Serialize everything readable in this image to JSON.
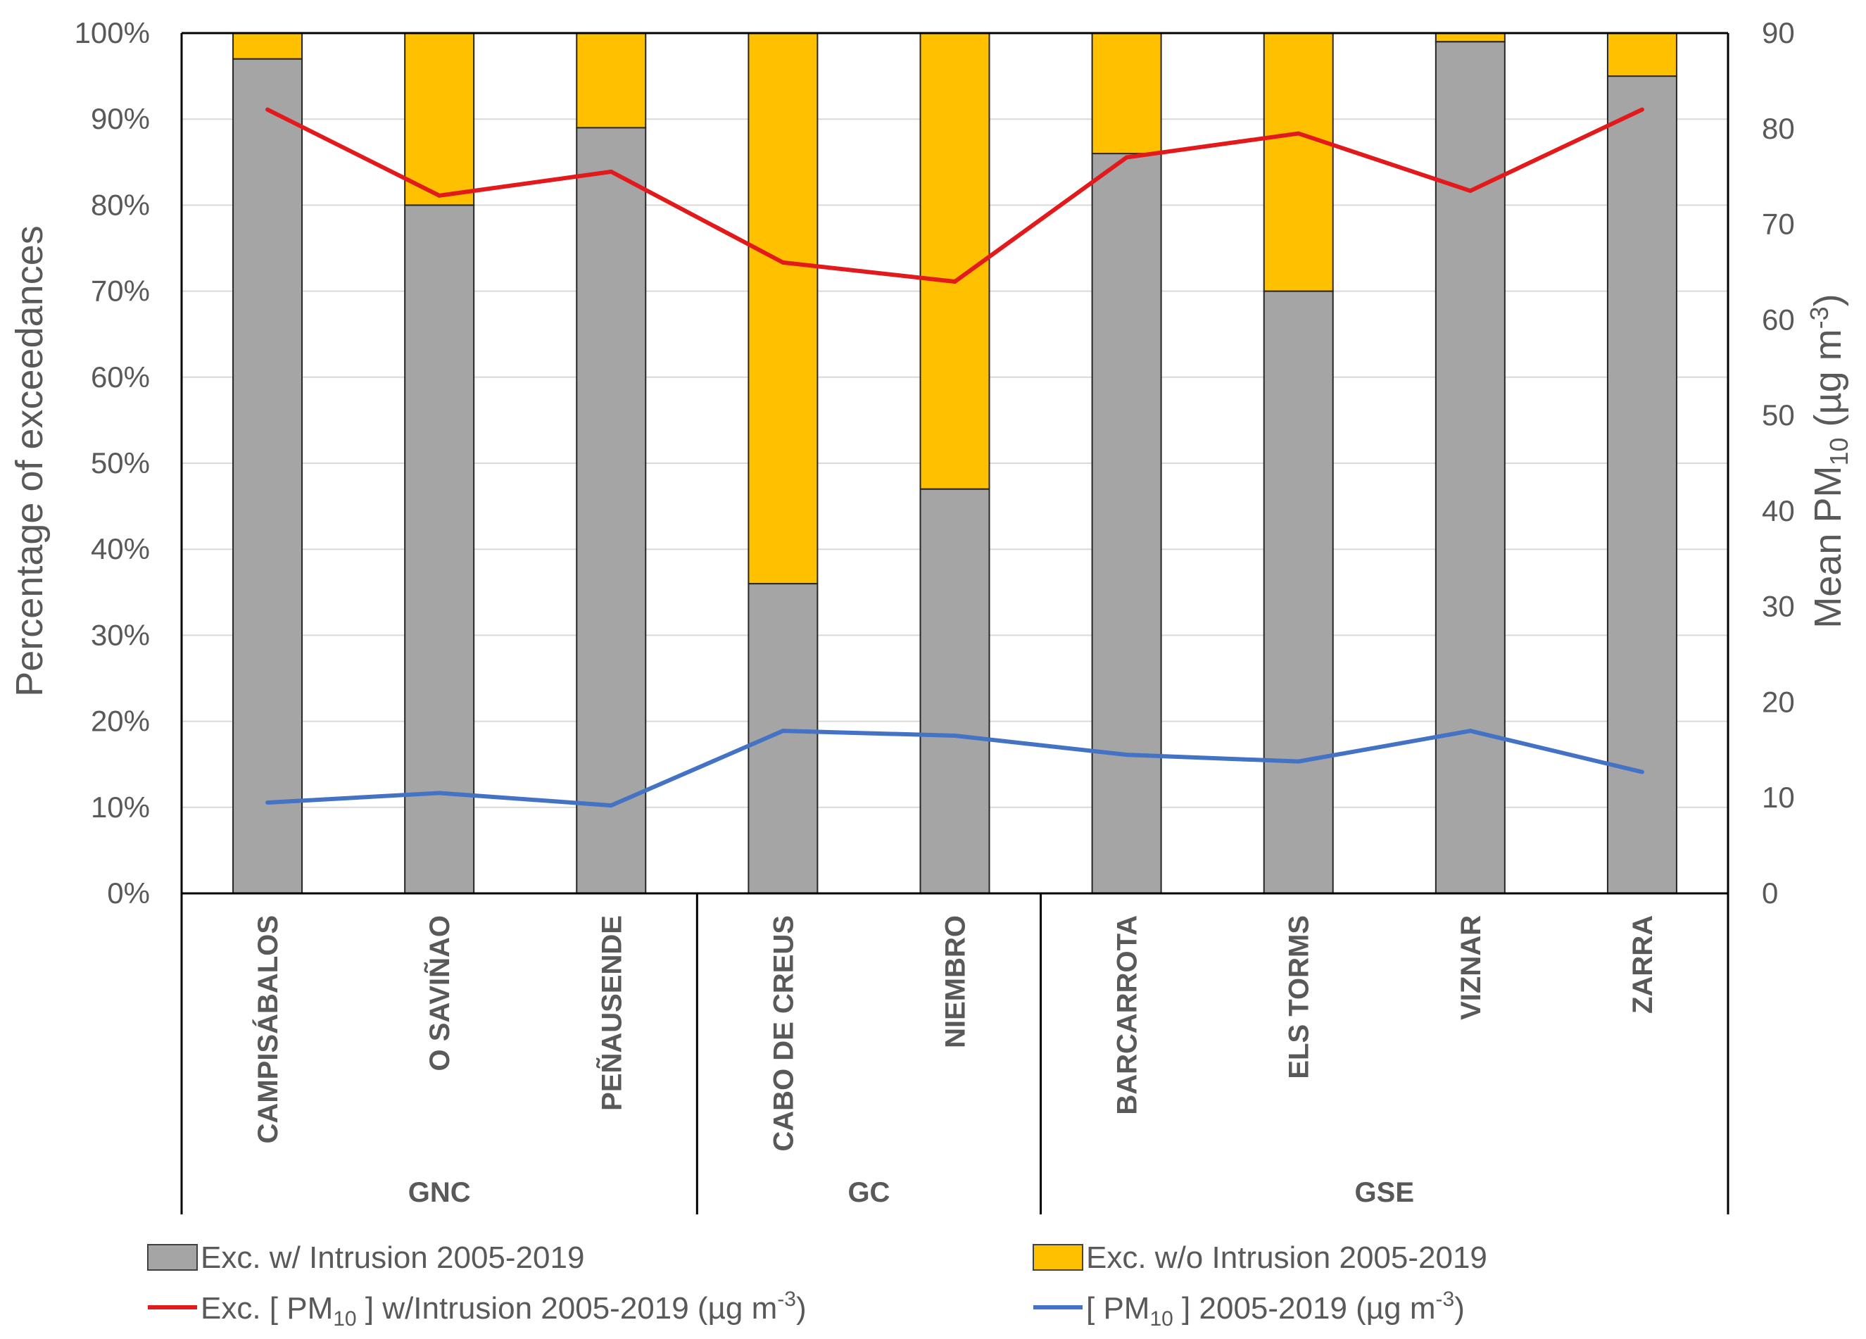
{
  "chart_data": {
    "type": "bar",
    "stacked": true,
    "categories": [
      "CAMPISÁBALOS",
      "O SAVIÑAO",
      "PEÑAUSENDE",
      "CABO DE CREUS",
      "NIEMBRO",
      "BARCARROTA",
      "ELS TORMS",
      "VIZNAR",
      "ZARRA"
    ],
    "groups": [
      {
        "label": "GNC",
        "categories": [
          "CAMPISÁBALOS",
          "O SAVIÑAO",
          "PEÑAUSENDE"
        ]
      },
      {
        "label": "GC",
        "categories": [
          "CABO DE CREUS",
          "NIEMBRO"
        ]
      },
      {
        "label": "GSE",
        "categories": [
          "BARCARROTA",
          "ELS TORMS",
          "VIZNAR",
          "ZARRA"
        ]
      }
    ],
    "series": [
      {
        "name": "Exc. w/ Intrusion 2005-2019",
        "kind": "bar",
        "axis": "left",
        "color": "#a5a5a5",
        "values": [
          97,
          80,
          89,
          36,
          47,
          86,
          70,
          99,
          95
        ]
      },
      {
        "name": "Exc. w/o Intrusion 2005-2019",
        "kind": "bar",
        "axis": "left",
        "color": "#ffc000",
        "values": [
          3,
          20,
          11,
          64,
          53,
          14,
          30,
          1,
          5
        ]
      },
      {
        "name": "Exc. [ PM10 ] w/Intrusion 2005-2019 (µg m-3)",
        "kind": "line",
        "axis": "right",
        "color": "#e31a1c",
        "values": [
          82,
          73,
          75.5,
          66,
          64,
          77,
          79.5,
          73.5,
          82
        ]
      },
      {
        "name": "[ PM10 ] 2005-2019 (µg m-3)",
        "kind": "line",
        "axis": "right",
        "color": "#4472c4",
        "values": [
          9.5,
          10.5,
          9.2,
          17,
          16.5,
          14.5,
          13.8,
          17,
          12.7
        ]
      }
    ],
    "ylabel": "Percentage of exceedances",
    "y2label": "Mean PM10 (µg m-3)",
    "ylim": [
      0,
      100
    ],
    "y2lim": [
      0,
      90
    ],
    "yticks": [
      "0%",
      "10%",
      "20%",
      "30%",
      "40%",
      "50%",
      "60%",
      "70%",
      "80%",
      "90%",
      "100%"
    ],
    "y2ticks": [
      "0",
      "10",
      "20",
      "30",
      "40",
      "50",
      "60",
      "70",
      "80",
      "90"
    ],
    "grid": true,
    "legend_position": "bottom"
  }
}
